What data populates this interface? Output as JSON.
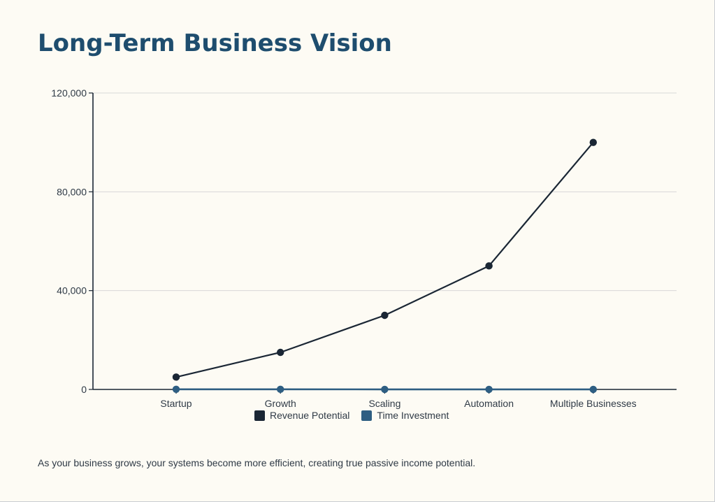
{
  "chart_data": {
    "type": "line",
    "title": "Long-Term Business Vision",
    "categories": [
      "Startup",
      "Growth",
      "Scaling",
      "Automation",
      "Multiple Businesses"
    ],
    "series": [
      {
        "name": "Revenue Potential",
        "values": [
          5000,
          15000,
          30000,
          50000,
          100000
        ],
        "color": "#1a2634"
      },
      {
        "name": "Time Investment",
        "values": [
          60,
          40,
          30,
          20,
          10
        ],
        "color": "#2e5e82"
      }
    ],
    "ylim": [
      0,
      120000
    ],
    "yticks": [
      0,
      40000,
      80000,
      120000
    ],
    "ytick_labels": [
      "0",
      "40,000",
      "80,000",
      "120,000"
    ],
    "xlabel": "",
    "ylabel": "",
    "grid": "horizontal",
    "legend_position": "bottom-center"
  },
  "footnote": "As your business grows, your systems become more efficient, creating true passive income potential.",
  "colors": {
    "background": "#fdfbf4",
    "title": "#1e4d6e",
    "axis": "#1a2634",
    "grid": "#d8d8d8"
  }
}
